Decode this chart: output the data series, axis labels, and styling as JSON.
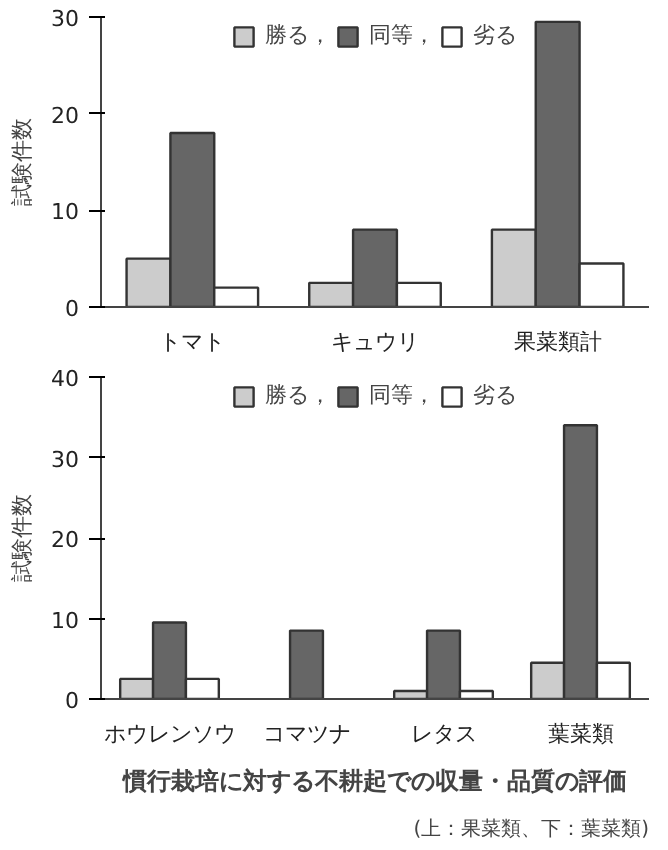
{
  "chart_data": [
    {
      "type": "bar",
      "ylabel": "試験件数",
      "categories": [
        "トマト",
        "キュウリ",
        "果菜類計"
      ],
      "ylim": [
        0,
        30
      ],
      "yticks": [
        0,
        10,
        20,
        30
      ],
      "legend": "top",
      "grid": false,
      "series": [
        {
          "name": "勝る，",
          "color": "#cccccc",
          "values": [
            5,
            2.5,
            8
          ]
        },
        {
          "name": "同等，",
          "color": "#666666",
          "values": [
            18,
            8,
            29.5
          ]
        },
        {
          "name": "劣る",
          "color": "#ffffff",
          "values": [
            2,
            2.5,
            4.5
          ]
        }
      ]
    },
    {
      "type": "bar",
      "ylabel": "試験件数",
      "title": "慣行栽培に対する不耕起での収量・品質の評価",
      "subtitle": "(上：果菜類、下：葉菜類)",
      "categories": [
        "ホウレンソウ",
        "コマツナ",
        "レタス",
        "葉菜類"
      ],
      "ylim": [
        0,
        40
      ],
      "yticks": [
        0,
        10,
        20,
        30,
        40
      ],
      "legend": "top",
      "grid": false,
      "series": [
        {
          "name": "勝る，",
          "color": "#cccccc",
          "values": [
            2.5,
            null,
            1,
            4.5
          ]
        },
        {
          "name": "同等，",
          "color": "#666666",
          "values": [
            9.5,
            8.5,
            8.5,
            34
          ]
        },
        {
          "name": "劣る",
          "color": "#ffffff",
          "values": [
            2.5,
            null,
            1,
            4.5
          ]
        }
      ]
    }
  ]
}
